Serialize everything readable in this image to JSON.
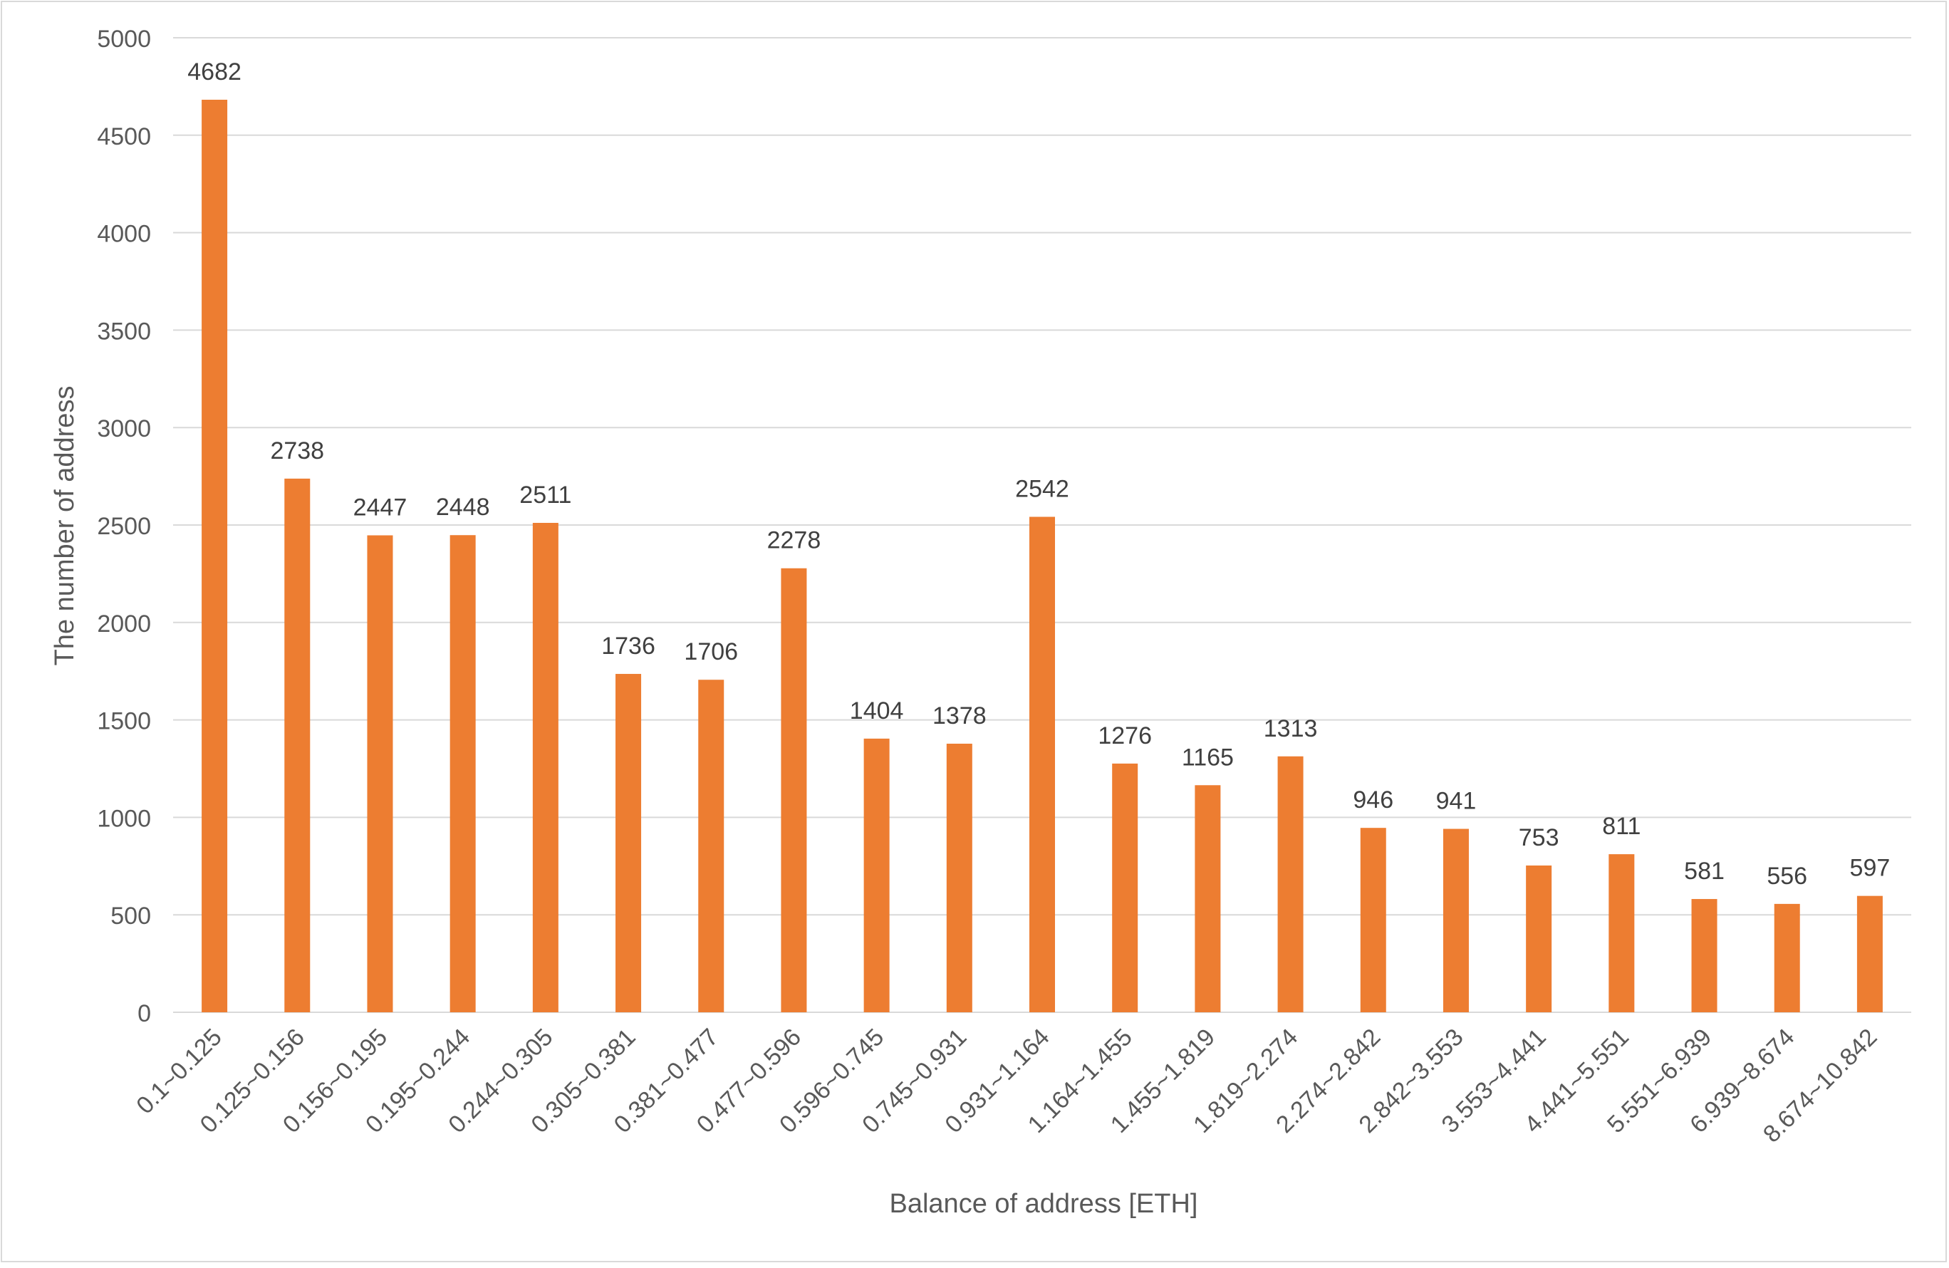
{
  "chart_data": {
    "type": "bar",
    "title": "",
    "xlabel": "Balance of address [ETH]",
    "ylabel": "The number of address",
    "ylim": [
      0,
      5000
    ],
    "yticks": [
      0,
      500,
      1000,
      1500,
      2000,
      2500,
      3000,
      3500,
      4000,
      4500,
      5000
    ],
    "grid": true,
    "legend": "none",
    "bar_color": "#ED7D31",
    "categories": [
      "0.1~0.125",
      "0.125~0.156",
      "0.156~0.195",
      "0.195~0.244",
      "0.244~0.305",
      "0.305~0.381",
      "0.381~0.477",
      "0.477~0.596",
      "0.596~0.745",
      "0.745~0.931",
      "0.931~1.164",
      "1.164~1.455",
      "1.455~1.819",
      "1.819~2.274",
      "2.274~2.842",
      "2.842~3.553",
      "3.553~4.441",
      "4.441~5.551",
      "5.551~6.939",
      "6.939~8.674",
      "8.674~10.842"
    ],
    "values": [
      4682,
      2738,
      2447,
      2448,
      2511,
      1736,
      1706,
      2278,
      1404,
      1378,
      2542,
      1276,
      1165,
      1313,
      946,
      941,
      753,
      811,
      581,
      556,
      597
    ]
  }
}
